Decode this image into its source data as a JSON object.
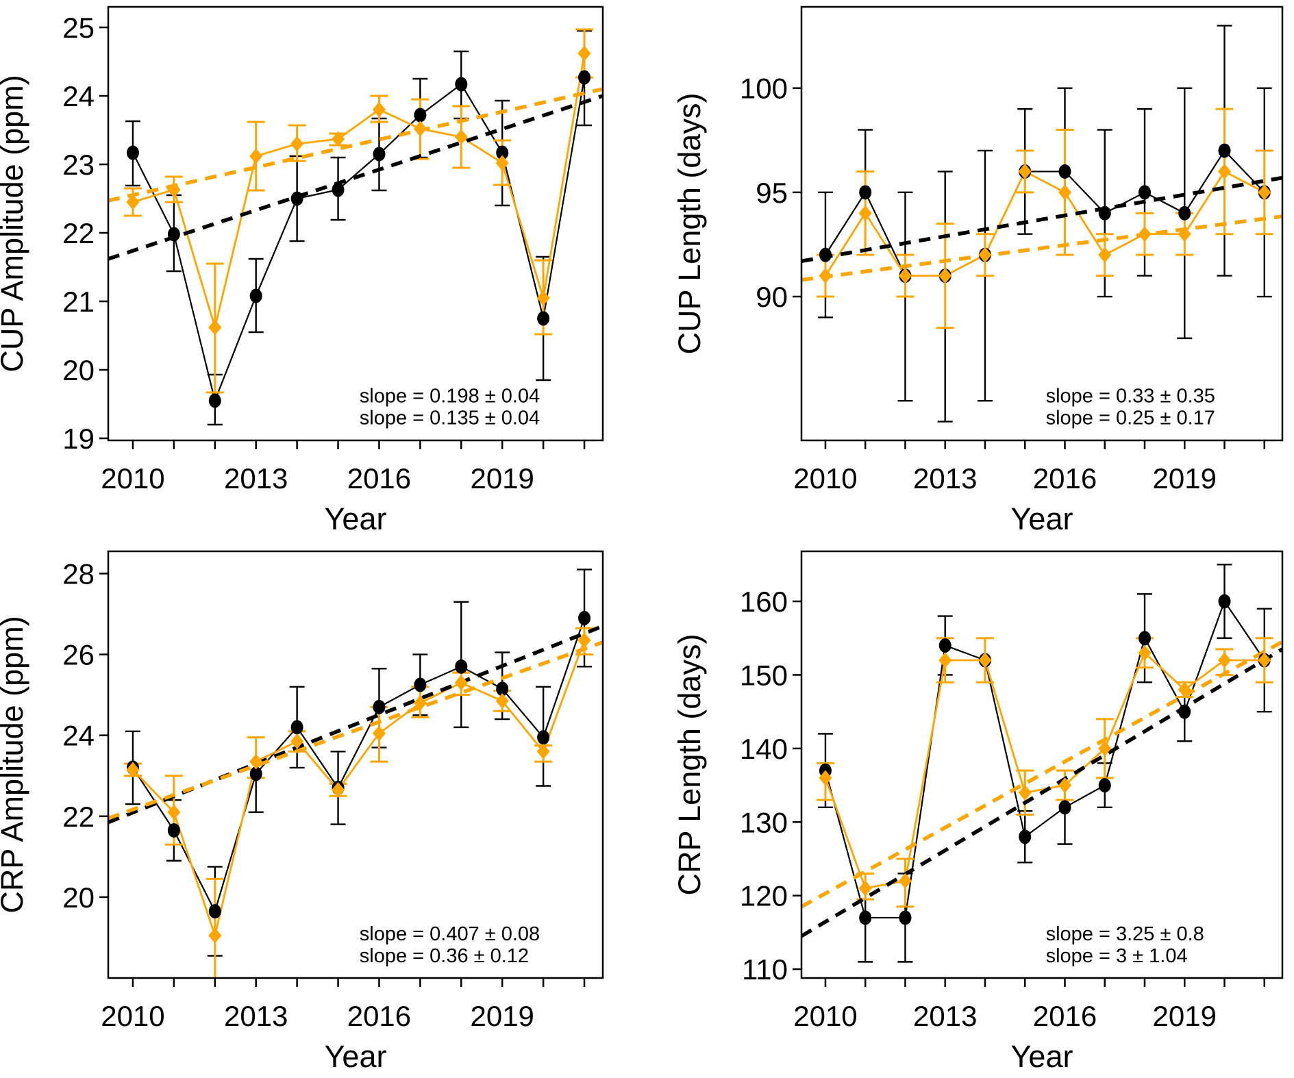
{
  "figure": {
    "background": "#ffffff",
    "x_label": "Year",
    "colors": {
      "series_black": "#000000",
      "series_orange": "#FFA500"
    },
    "x_years": [
      2010,
      2011,
      2012,
      2013,
      2014,
      2015,
      2016,
      2017,
      2018,
      2019,
      2020,
      2021
    ],
    "x_labeled_ticks": [
      2010,
      2013,
      2016,
      2019
    ],
    "xlim": [
      2009.4,
      2021.45
    ]
  },
  "chart_data": [
    {
      "type": "line",
      "id": "cup-amplitude",
      "ylabel": "CUP Amplitude (ppm)",
      "xlabel": "Year",
      "ylim": [
        18.97,
        25.3
      ],
      "yticks": [
        19,
        20,
        21,
        22,
        23,
        24,
        25
      ],
      "x": [
        2010,
        2011,
        2012,
        2013,
        2014,
        2015,
        2016,
        2017,
        2018,
        2019,
        2020,
        2021
      ],
      "series": [
        {
          "name": "black",
          "color": "#000000",
          "marker": "circle",
          "values": [
            23.17,
            21.98,
            19.55,
            21.08,
            22.5,
            22.63,
            23.15,
            23.72,
            24.17,
            23.17,
            20.75,
            24.27
          ],
          "err_lo": [
            22.69,
            21.44,
            19.2,
            20.55,
            21.88,
            22.19,
            22.62,
            23.1,
            23.67,
            22.4,
            19.85,
            23.57
          ],
          "err_hi": [
            23.63,
            22.55,
            19.93,
            21.62,
            23.12,
            23.1,
            23.67,
            24.25,
            24.65,
            23.93,
            21.65,
            24.95
          ],
          "trend_endpoints": [
            21.62,
            24.0
          ],
          "slope_label": "slope = 0.198 ± 0.04"
        },
        {
          "name": "orange",
          "color": "#FFA500",
          "marker": "diamond",
          "values": [
            22.45,
            22.63,
            20.62,
            23.12,
            23.3,
            23.37,
            23.8,
            23.52,
            23.4,
            23.02,
            21.05,
            24.62
          ],
          "err_lo": [
            22.25,
            22.45,
            19.67,
            22.62,
            23.05,
            23.28,
            23.62,
            23.08,
            22.95,
            22.7,
            20.52,
            24.27
          ],
          "err_hi": [
            22.65,
            22.82,
            21.55,
            23.62,
            23.57,
            23.45,
            24.0,
            23.95,
            23.85,
            23.35,
            21.6,
            24.97
          ],
          "trend_endpoints": [
            22.47,
            24.1
          ],
          "slope_label": "slope = 0.135 ± 0.04"
        }
      ]
    },
    {
      "type": "line",
      "id": "cup-length",
      "ylabel": "CUP Length (days)",
      "xlabel": "Year",
      "ylim": [
        83.1,
        103.9
      ],
      "yticks": [
        90,
        95,
        100
      ],
      "x": [
        2010,
        2011,
        2012,
        2013,
        2014,
        2015,
        2016,
        2017,
        2018,
        2019,
        2020,
        2021
      ],
      "series": [
        {
          "name": "black",
          "color": "#000000",
          "marker": "circle",
          "values": [
            92,
            95,
            91,
            91,
            92,
            96,
            96,
            94,
            95,
            94,
            97,
            95
          ],
          "err_lo": [
            89,
            92,
            85,
            84,
            85,
            93,
            92,
            90,
            91,
            88,
            91,
            90
          ],
          "err_hi": [
            95,
            98,
            95,
            96,
            97,
            99,
            100,
            98,
            99,
            100,
            103,
            100
          ],
          "trend_endpoints": [
            91.7,
            95.7
          ],
          "slope_label": "slope = 0.33 ± 0.35"
        },
        {
          "name": "orange",
          "color": "#FFA500",
          "marker": "diamond",
          "values": [
            91,
            94,
            91,
            91,
            92,
            96,
            95,
            92,
            93,
            93,
            96,
            95
          ],
          "err_lo": [
            90,
            92,
            90,
            88.5,
            91,
            95,
            92,
            91,
            92,
            92,
            93,
            93
          ],
          "err_hi": [
            92,
            96,
            92,
            93.5,
            93,
            97,
            98,
            93,
            94,
            94,
            99,
            97
          ],
          "trend_endpoints": [
            90.8,
            93.85
          ],
          "slope_label": "slope = 0.25 ± 0.17"
        }
      ]
    },
    {
      "type": "line",
      "id": "crp-amplitude",
      "ylabel": "CRP Amplitude (ppm)",
      "xlabel": "Year",
      "ylim": [
        18.0,
        28.55
      ],
      "yticks": [
        20,
        22,
        24,
        26,
        28
      ],
      "x": [
        2010,
        2011,
        2012,
        2013,
        2014,
        2015,
        2016,
        2017,
        2018,
        2019,
        2020,
        2021
      ],
      "series": [
        {
          "name": "black",
          "color": "#000000",
          "marker": "circle",
          "values": [
            23.2,
            21.65,
            19.65,
            23.05,
            24.2,
            22.7,
            24.7,
            25.25,
            25.7,
            25.15,
            23.95,
            26.9
          ],
          "err_lo": [
            22.3,
            20.9,
            18.55,
            22.1,
            23.2,
            21.8,
            23.7,
            24.5,
            24.2,
            24.4,
            22.75,
            25.7
          ],
          "err_hi": [
            24.1,
            22.4,
            20.75,
            23.95,
            25.2,
            23.6,
            25.65,
            26.0,
            27.3,
            26.05,
            25.2,
            28.1
          ],
          "trend_endpoints": [
            21.85,
            26.7
          ],
          "slope_label": "slope = 0.407 ± 0.08"
        },
        {
          "name": "orange",
          "color": "#FFA500",
          "marker": "diamond",
          "values": [
            23.15,
            22.1,
            19.05,
            23.35,
            23.85,
            22.65,
            24.05,
            24.8,
            25.3,
            24.85,
            23.6,
            26.35
          ],
          "err_lo": [
            23.0,
            21.3,
            17.6,
            22.95,
            23.6,
            22.5,
            23.35,
            24.45,
            25.0,
            24.6,
            23.35,
            26.0
          ],
          "err_hi": [
            23.3,
            23.0,
            20.45,
            23.95,
            24.1,
            22.8,
            24.7,
            25.2,
            25.55,
            25.1,
            23.75,
            26.65
          ],
          "trend_endpoints": [
            21.95,
            26.3
          ],
          "slope_label": "slope = 0.36 ± 0.12"
        }
      ]
    },
    {
      "type": "line",
      "id": "crp-length",
      "ylabel": "CRP Length (days)",
      "xlabel": "Year",
      "ylim": [
        108.8,
        166.8
      ],
      "yticks": [
        110,
        120,
        130,
        140,
        150,
        160
      ],
      "x": [
        2010,
        2011,
        2012,
        2013,
        2014,
        2015,
        2016,
        2017,
        2018,
        2019,
        2020,
        2021
      ],
      "series": [
        {
          "name": "black",
          "color": "#000000",
          "marker": "circle",
          "values": [
            137,
            117,
            117,
            154,
            152,
            128,
            132,
            135,
            155,
            145,
            160,
            152
          ],
          "err_lo": [
            132,
            111,
            111,
            150,
            149,
            124.5,
            127,
            132,
            149,
            141,
            155,
            145
          ],
          "err_hi": [
            142,
            123,
            123,
            158,
            155,
            131.5,
            137,
            138,
            161,
            149,
            165,
            159
          ],
          "trend_endpoints": [
            114.5,
            153.5
          ],
          "slope_label": "slope = 3.25 ± 0.8"
        },
        {
          "name": "orange",
          "color": "#FFA500",
          "marker": "diamond",
          "values": [
            136,
            121,
            122,
            152,
            152,
            134,
            135,
            140,
            153,
            148,
            152,
            152
          ],
          "err_lo": [
            133,
            119.5,
            118.5,
            149,
            149,
            131,
            133,
            136,
            151,
            147,
            150,
            149
          ],
          "err_hi": [
            138,
            123,
            125,
            155,
            155,
            137,
            137,
            144,
            155,
            149,
            153.5,
            155
          ],
          "trend_endpoints": [
            118.5,
            154.5
          ],
          "slope_label": "slope = 3 ± 1.04"
        }
      ]
    }
  ]
}
